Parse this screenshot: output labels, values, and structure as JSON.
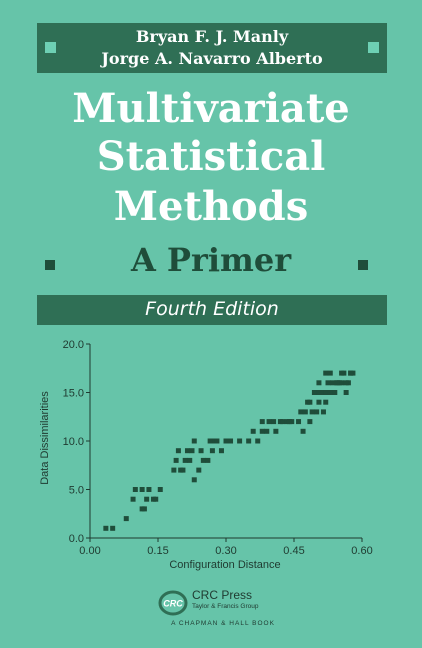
{
  "authors": [
    "Bryan F. J. Manly",
    "Jorge A. Navarro Alberto"
  ],
  "title_lines": [
    "Multivariate",
    "Statistical",
    "Methods"
  ],
  "subtitle": "A Primer",
  "edition": "Fourth Edition",
  "colors": {
    "background": "#66c4a9",
    "band": "#2f6f55",
    "ink": "#1f4d3a",
    "title": "#ffffff"
  },
  "chart_data": {
    "type": "scatter",
    "xlabel": "Configuration Distance",
    "ylabel": "Data Dissimilarities",
    "xlim": [
      0,
      0.6
    ],
    "ylim": [
      0,
      20
    ],
    "xticks": [
      "0.00",
      "0.15",
      "0.30",
      "0.45",
      "0.60"
    ],
    "yticks": [
      "0.0",
      "5.0",
      "10.0",
      "15.0",
      "20.0"
    ],
    "points": [
      [
        0.035,
        1
      ],
      [
        0.05,
        1
      ],
      [
        0.08,
        2
      ],
      [
        0.095,
        4
      ],
      [
        0.1,
        5
      ],
      [
        0.115,
        3
      ],
      [
        0.12,
        3
      ],
      [
        0.115,
        5
      ],
      [
        0.13,
        5
      ],
      [
        0.125,
        4
      ],
      [
        0.14,
        4
      ],
      [
        0.145,
        4
      ],
      [
        0.155,
        5
      ],
      [
        0.185,
        7
      ],
      [
        0.19,
        8
      ],
      [
        0.2,
        7
      ],
      [
        0.205,
        7
      ],
      [
        0.195,
        9
      ],
      [
        0.21,
        8
      ],
      [
        0.22,
        8
      ],
      [
        0.215,
        9
      ],
      [
        0.225,
        9
      ],
      [
        0.23,
        10
      ],
      [
        0.23,
        6
      ],
      [
        0.24,
        7
      ],
      [
        0.245,
        9
      ],
      [
        0.25,
        8
      ],
      [
        0.26,
        8
      ],
      [
        0.265,
        10
      ],
      [
        0.27,
        9
      ],
      [
        0.275,
        10
      ],
      [
        0.28,
        10
      ],
      [
        0.29,
        9
      ],
      [
        0.3,
        10
      ],
      [
        0.31,
        10
      ],
      [
        0.33,
        10
      ],
      [
        0.35,
        10
      ],
      [
        0.36,
        11
      ],
      [
        0.37,
        10
      ],
      [
        0.38,
        11
      ],
      [
        0.38,
        12
      ],
      [
        0.39,
        11
      ],
      [
        0.395,
        12
      ],
      [
        0.405,
        12
      ],
      [
        0.41,
        11
      ],
      [
        0.42,
        12
      ],
      [
        0.425,
        12
      ],
      [
        0.435,
        12
      ],
      [
        0.445,
        12
      ],
      [
        0.46,
        12
      ],
      [
        0.465,
        13
      ],
      [
        0.475,
        13
      ],
      [
        0.48,
        14
      ],
      [
        0.485,
        12
      ],
      [
        0.49,
        13
      ],
      [
        0.495,
        15
      ],
      [
        0.5,
        13
      ],
      [
        0.505,
        14
      ],
      [
        0.51,
        15
      ],
      [
        0.515,
        13
      ],
      [
        0.52,
        15
      ],
      [
        0.525,
        16
      ],
      [
        0.53,
        15
      ],
      [
        0.535,
        16
      ],
      [
        0.54,
        15
      ],
      [
        0.545,
        16
      ],
      [
        0.55,
        16
      ],
      [
        0.555,
        16
      ],
      [
        0.56,
        17
      ],
      [
        0.565,
        15
      ],
      [
        0.57,
        16
      ],
      [
        0.575,
        17
      ],
      [
        0.58,
        17
      ],
      [
        0.52,
        17
      ],
      [
        0.53,
        17
      ],
      [
        0.555,
        17
      ],
      [
        0.505,
        16
      ],
      [
        0.47,
        11
      ],
      [
        0.485,
        14
      ],
      [
        0.44,
        12
      ],
      [
        0.505,
        15
      ],
      [
        0.52,
        14
      ],
      [
        0.545,
        16
      ],
      [
        0.565,
        16
      ],
      [
        0.575,
        17
      ]
    ]
  },
  "publisher": {
    "name": "CRC Press",
    "group": "Taylor & Francis Group",
    "imprint": "A CHAPMAN & HALL BOOK",
    "logo_text": "CRC"
  }
}
